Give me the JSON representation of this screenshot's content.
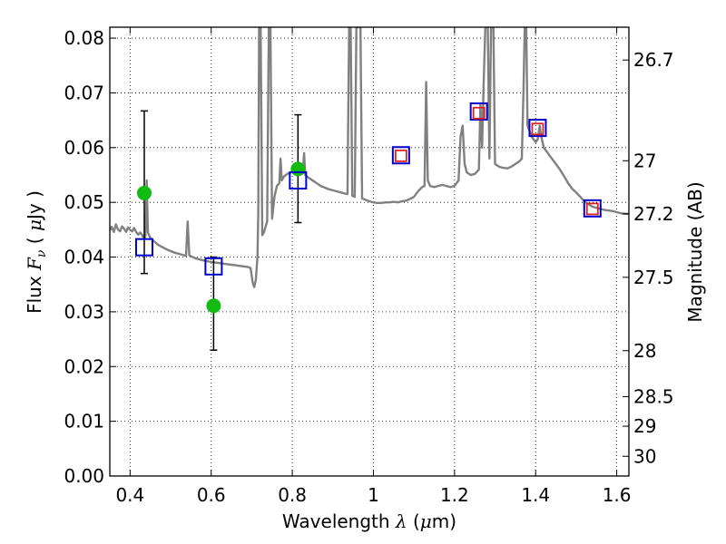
{
  "chart_data": {
    "type": "scatter",
    "xlabel_prefix": "Wavelength  ",
    "xlabel_symbol": "λ",
    "xlabel_unit_open": " (",
    "xlabel_unit_mu": "μ",
    "xlabel_unit_rest": "m)",
    "ylabel_prefix": "Flux  ",
    "ylabel_symbol": "F",
    "ylabel_sub": "ν",
    "ylabel_unit_open": "  (  ",
    "ylabel_unit_mu": "μ",
    "ylabel_unit_rest": "Jy )",
    "y2label": "Magnitude (AB)",
    "xlim": [
      0.35,
      1.63
    ],
    "ylim": [
      0.0,
      0.082
    ],
    "grid": true,
    "x_ticks": [
      0.4,
      0.6,
      0.8,
      1.0,
      1.2,
      1.4,
      1.6
    ],
    "x_tick_labels": [
      "0.4",
      "0.6",
      "0.8",
      "1",
      "1.2",
      "1.4",
      "1.6"
    ],
    "y_ticks": [
      0.0,
      0.01,
      0.02,
      0.03,
      0.04,
      0.05,
      0.06,
      0.07,
      0.08
    ],
    "y_tick_labels": [
      "0.00",
      "0.01",
      "0.02",
      "0.03",
      "0.04",
      "0.05",
      "0.06",
      "0.07",
      "0.08"
    ],
    "y2_ticks": [
      {
        "label": "26.7",
        "flux": 0.076
      },
      {
        "label": "27",
        "flux": 0.0576
      },
      {
        "label": "27.2",
        "flux": 0.0479
      },
      {
        "label": "27.5",
        "flux": 0.0363
      },
      {
        "label": "28",
        "flux": 0.0229
      },
      {
        "label": "28.5",
        "flux": 0.0145
      },
      {
        "label": "29",
        "flux": 0.0091
      },
      {
        "label": "30",
        "flux": 0.0036
      }
    ],
    "photometry_observed": {
      "color": "#11bb11",
      "points": [
        {
          "x": 0.435,
          "y": 0.0517,
          "yerr_low": 0.0147,
          "yerr_high": 0.015
        },
        {
          "x": 0.606,
          "y": 0.0311,
          "yerr_low": 0.0081,
          "yerr_high": 0.0089
        },
        {
          "x": 0.814,
          "y": 0.0561,
          "yerr_low": 0.0098,
          "yerr_high": 0.0099
        }
      ]
    },
    "photometry_model_blue": {
      "color": "#0000cc",
      "points": [
        {
          "x": 0.435,
          "y": 0.0418
        },
        {
          "x": 0.606,
          "y": 0.0383
        },
        {
          "x": 0.814,
          "y": 0.054
        },
        {
          "x": 1.068,
          "y": 0.0586
        },
        {
          "x": 1.26,
          "y": 0.0666
        },
        {
          "x": 1.405,
          "y": 0.0636
        },
        {
          "x": 1.54,
          "y": 0.0489
        }
      ]
    },
    "photometry_model_red": {
      "color": "#dd2222",
      "points": [
        {
          "x": 1.068,
          "y": 0.0585
        },
        {
          "x": 1.26,
          "y": 0.0663
        },
        {
          "x": 1.405,
          "y": 0.0634
        },
        {
          "x": 1.54,
          "y": 0.0488
        }
      ]
    },
    "sed_spectrum": {
      "color": "#808080",
      "points": [
        [
          0.35,
          0.0449
        ],
        [
          0.355,
          0.0455
        ],
        [
          0.36,
          0.0446
        ],
        [
          0.365,
          0.046
        ],
        [
          0.37,
          0.0451
        ],
        [
          0.375,
          0.0447
        ],
        [
          0.38,
          0.0456
        ],
        [
          0.385,
          0.0452
        ],
        [
          0.39,
          0.0446
        ],
        [
          0.395,
          0.0454
        ],
        [
          0.4,
          0.045
        ],
        [
          0.405,
          0.0447
        ],
        [
          0.41,
          0.0453
        ],
        [
          0.415,
          0.0446
        ],
        [
          0.42,
          0.0441
        ],
        [
          0.425,
          0.0445
        ],
        [
          0.43,
          0.044
        ],
        [
          0.435,
          0.0433
        ],
        [
          0.438,
          0.044
        ],
        [
          0.441,
          0.054
        ],
        [
          0.444,
          0.0445
        ],
        [
          0.45,
          0.0435
        ],
        [
          0.46,
          0.0428
        ],
        [
          0.47,
          0.0422
        ],
        [
          0.48,
          0.0418
        ],
        [
          0.49,
          0.0414
        ],
        [
          0.5,
          0.0411
        ],
        [
          0.51,
          0.0408
        ],
        [
          0.52,
          0.0406
        ],
        [
          0.53,
          0.0404
        ],
        [
          0.538,
          0.0402
        ],
        [
          0.542,
          0.0465
        ],
        [
          0.546,
          0.0403
        ],
        [
          0.56,
          0.0398
        ],
        [
          0.58,
          0.0394
        ],
        [
          0.6,
          0.0391
        ],
        [
          0.62,
          0.0389
        ],
        [
          0.64,
          0.0387
        ],
        [
          0.66,
          0.0385
        ],
        [
          0.68,
          0.0383
        ],
        [
          0.69,
          0.0382
        ],
        [
          0.697,
          0.038
        ],
        [
          0.702,
          0.0355
        ],
        [
          0.706,
          0.0345
        ],
        [
          0.71,
          0.0358
        ],
        [
          0.714,
          0.04
        ],
        [
          0.716,
          0.048
        ],
        [
          0.718,
          0.082
        ],
        [
          0.722,
          0.082
        ],
        [
          0.726,
          0.044
        ],
        [
          0.73,
          0.0445
        ],
        [
          0.734,
          0.0455
        ],
        [
          0.738,
          0.0465
        ],
        [
          0.742,
          0.082
        ],
        [
          0.746,
          0.082
        ],
        [
          0.75,
          0.047
        ],
        [
          0.756,
          0.051
        ],
        [
          0.762,
          0.053
        ],
        [
          0.768,
          0.0535
        ],
        [
          0.771,
          0.058
        ],
        [
          0.774,
          0.054
        ],
        [
          0.78,
          0.0548
        ],
        [
          0.79,
          0.0553
        ],
        [
          0.8,
          0.0556
        ],
        [
          0.81,
          0.0555
        ],
        [
          0.82,
          0.0552
        ],
        [
          0.826,
          0.0553
        ],
        [
          0.829,
          0.059
        ],
        [
          0.832,
          0.055
        ],
        [
          0.84,
          0.0545
        ],
        [
          0.85,
          0.054
        ],
        [
          0.86,
          0.0535
        ],
        [
          0.87,
          0.053
        ],
        [
          0.88,
          0.0527
        ],
        [
          0.89,
          0.0524
        ],
        [
          0.9,
          0.0522
        ],
        [
          0.91,
          0.052
        ],
        [
          0.92,
          0.0518
        ],
        [
          0.93,
          0.0516
        ],
        [
          0.936,
          0.0515
        ],
        [
          0.94,
          0.082
        ],
        [
          0.944,
          0.082
        ],
        [
          0.948,
          0.0512
        ],
        [
          0.954,
          0.051
        ],
        [
          0.958,
          0.082
        ],
        [
          0.964,
          0.082
        ],
        [
          0.968,
          0.082
        ],
        [
          0.972,
          0.0507
        ],
        [
          0.98,
          0.0505
        ],
        [
          0.99,
          0.0502
        ],
        [
          1.0,
          0.05
        ],
        [
          1.01,
          0.0499
        ],
        [
          1.02,
          0.0499
        ],
        [
          1.03,
          0.05
        ],
        [
          1.04,
          0.05
        ],
        [
          1.05,
          0.0501
        ],
        [
          1.06,
          0.05
        ],
        [
          1.07,
          0.0502
        ],
        [
          1.08,
          0.0503
        ],
        [
          1.09,
          0.0506
        ],
        [
          1.1,
          0.051
        ],
        [
          1.11,
          0.052
        ],
        [
          1.12,
          0.0528
        ],
        [
          1.126,
          0.053
        ],
        [
          1.13,
          0.072
        ],
        [
          1.134,
          0.054
        ],
        [
          1.14,
          0.053
        ],
        [
          1.15,
          0.0528
        ],
        [
          1.16,
          0.053
        ],
        [
          1.17,
          0.0532
        ],
        [
          1.18,
          0.053
        ],
        [
          1.19,
          0.0528
        ],
        [
          1.2,
          0.053
        ],
        [
          1.21,
          0.054
        ],
        [
          1.215,
          0.062
        ],
        [
          1.22,
          0.064
        ],
        [
          1.225,
          0.057
        ],
        [
          1.23,
          0.0555
        ],
        [
          1.24,
          0.055
        ],
        [
          1.25,
          0.0552
        ],
        [
          1.26,
          0.056
        ],
        [
          1.264,
          0.068
        ],
        [
          1.268,
          0.06
        ],
        [
          1.272,
          0.072
        ],
        [
          1.276,
          0.082
        ],
        [
          1.282,
          0.082
        ],
        [
          1.286,
          0.058
        ],
        [
          1.29,
          0.082
        ],
        [
          1.296,
          0.082
        ],
        [
          1.3,
          0.057
        ],
        [
          1.31,
          0.0565
        ],
        [
          1.32,
          0.0563
        ],
        [
          1.33,
          0.0562
        ],
        [
          1.34,
          0.0565
        ],
        [
          1.35,
          0.057
        ],
        [
          1.36,
          0.0575
        ],
        [
          1.366,
          0.058
        ],
        [
          1.37,
          0.07
        ],
        [
          1.373,
          0.082
        ],
        [
          1.377,
          0.082
        ],
        [
          1.38,
          0.064
        ],
        [
          1.39,
          0.062
        ],
        [
          1.4,
          0.061
        ],
        [
          1.405,
          0.0615
        ],
        [
          1.41,
          0.064
        ],
        [
          1.414,
          0.062
        ],
        [
          1.42,
          0.06
        ],
        [
          1.43,
          0.059
        ],
        [
          1.44,
          0.058
        ],
        [
          1.45,
          0.057
        ],
        [
          1.46,
          0.056
        ],
        [
          1.47,
          0.0548
        ],
        [
          1.48,
          0.0535
        ],
        [
          1.49,
          0.0525
        ],
        [
          1.5,
          0.0518
        ],
        [
          1.51,
          0.051
        ],
        [
          1.52,
          0.0502
        ],
        [
          1.53,
          0.0497
        ],
        [
          1.54,
          0.0492
        ],
        [
          1.55,
          0.049
        ],
        [
          1.56,
          0.0488
        ],
        [
          1.57,
          0.0486
        ],
        [
          1.58,
          0.0485
        ],
        [
          1.59,
          0.0484
        ],
        [
          1.6,
          0.0482
        ],
        [
          1.61,
          0.048
        ],
        [
          1.62,
          0.0479
        ],
        [
          1.63,
          0.0479
        ]
      ]
    }
  }
}
